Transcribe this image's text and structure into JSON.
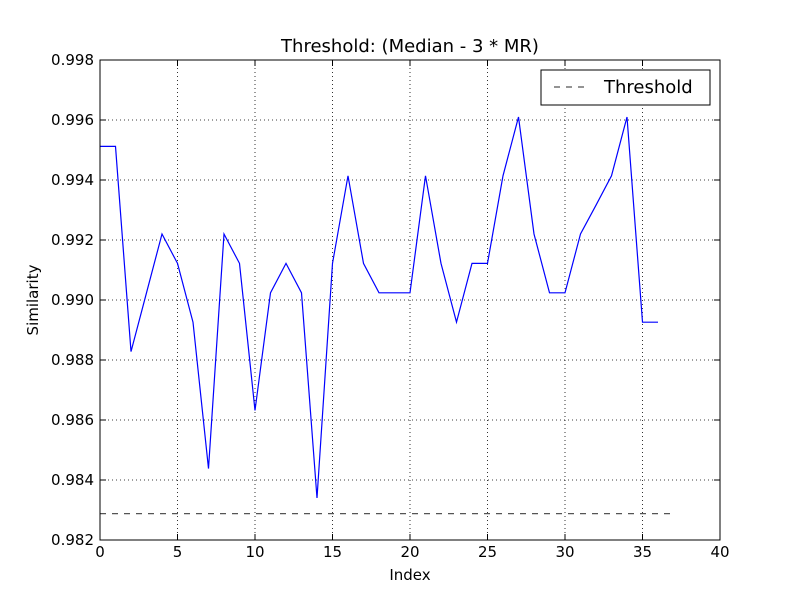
{
  "chart_data": {
    "type": "line",
    "title": "Threshold: (Median - 3 * MR)",
    "xlabel": "Index",
    "ylabel": "Similarity",
    "xlim": [
      0,
      40
    ],
    "ylim": [
      0.982,
      0.998
    ],
    "xticks": [
      0,
      5,
      10,
      15,
      20,
      25,
      30,
      35,
      40
    ],
    "yticks": [
      0.982,
      0.984,
      0.986,
      0.988,
      0.99,
      0.992,
      0.994,
      0.996,
      0.998
    ],
    "grid": true,
    "legend_position": "top-right",
    "series": [
      {
        "style": "solid",
        "color": "#0000ff",
        "x": [
          0,
          1,
          2,
          3,
          4,
          5,
          6,
          7,
          8,
          9,
          10,
          11,
          12,
          13,
          14,
          15,
          16,
          17,
          18,
          19,
          20,
          21,
          22,
          23,
          24,
          25,
          26,
          27,
          28,
          29,
          30,
          31,
          32,
          33,
          34,
          35,
          36
        ],
        "values": [
          0.99512,
          0.99512,
          0.98828,
          0.99024,
          0.9922,
          0.99122,
          0.98926,
          0.98438,
          0.9922,
          0.99122,
          0.98632,
          0.99024,
          0.99122,
          0.99024,
          0.9834,
          0.99122,
          0.99414,
          0.99122,
          0.99024,
          0.99024,
          0.99024,
          0.99414,
          0.99122,
          0.98926,
          0.99122,
          0.99122,
          0.99414,
          0.9961,
          0.9922,
          0.99024,
          0.99024,
          0.9922,
          0.99316,
          0.99414,
          0.9961,
          0.98926,
          0.98926
        ]
      },
      {
        "name": "Threshold",
        "style": "dashed",
        "color": "#555555",
        "x": [
          0,
          37
        ],
        "values": [
          0.98288,
          0.98288
        ]
      }
    ]
  }
}
